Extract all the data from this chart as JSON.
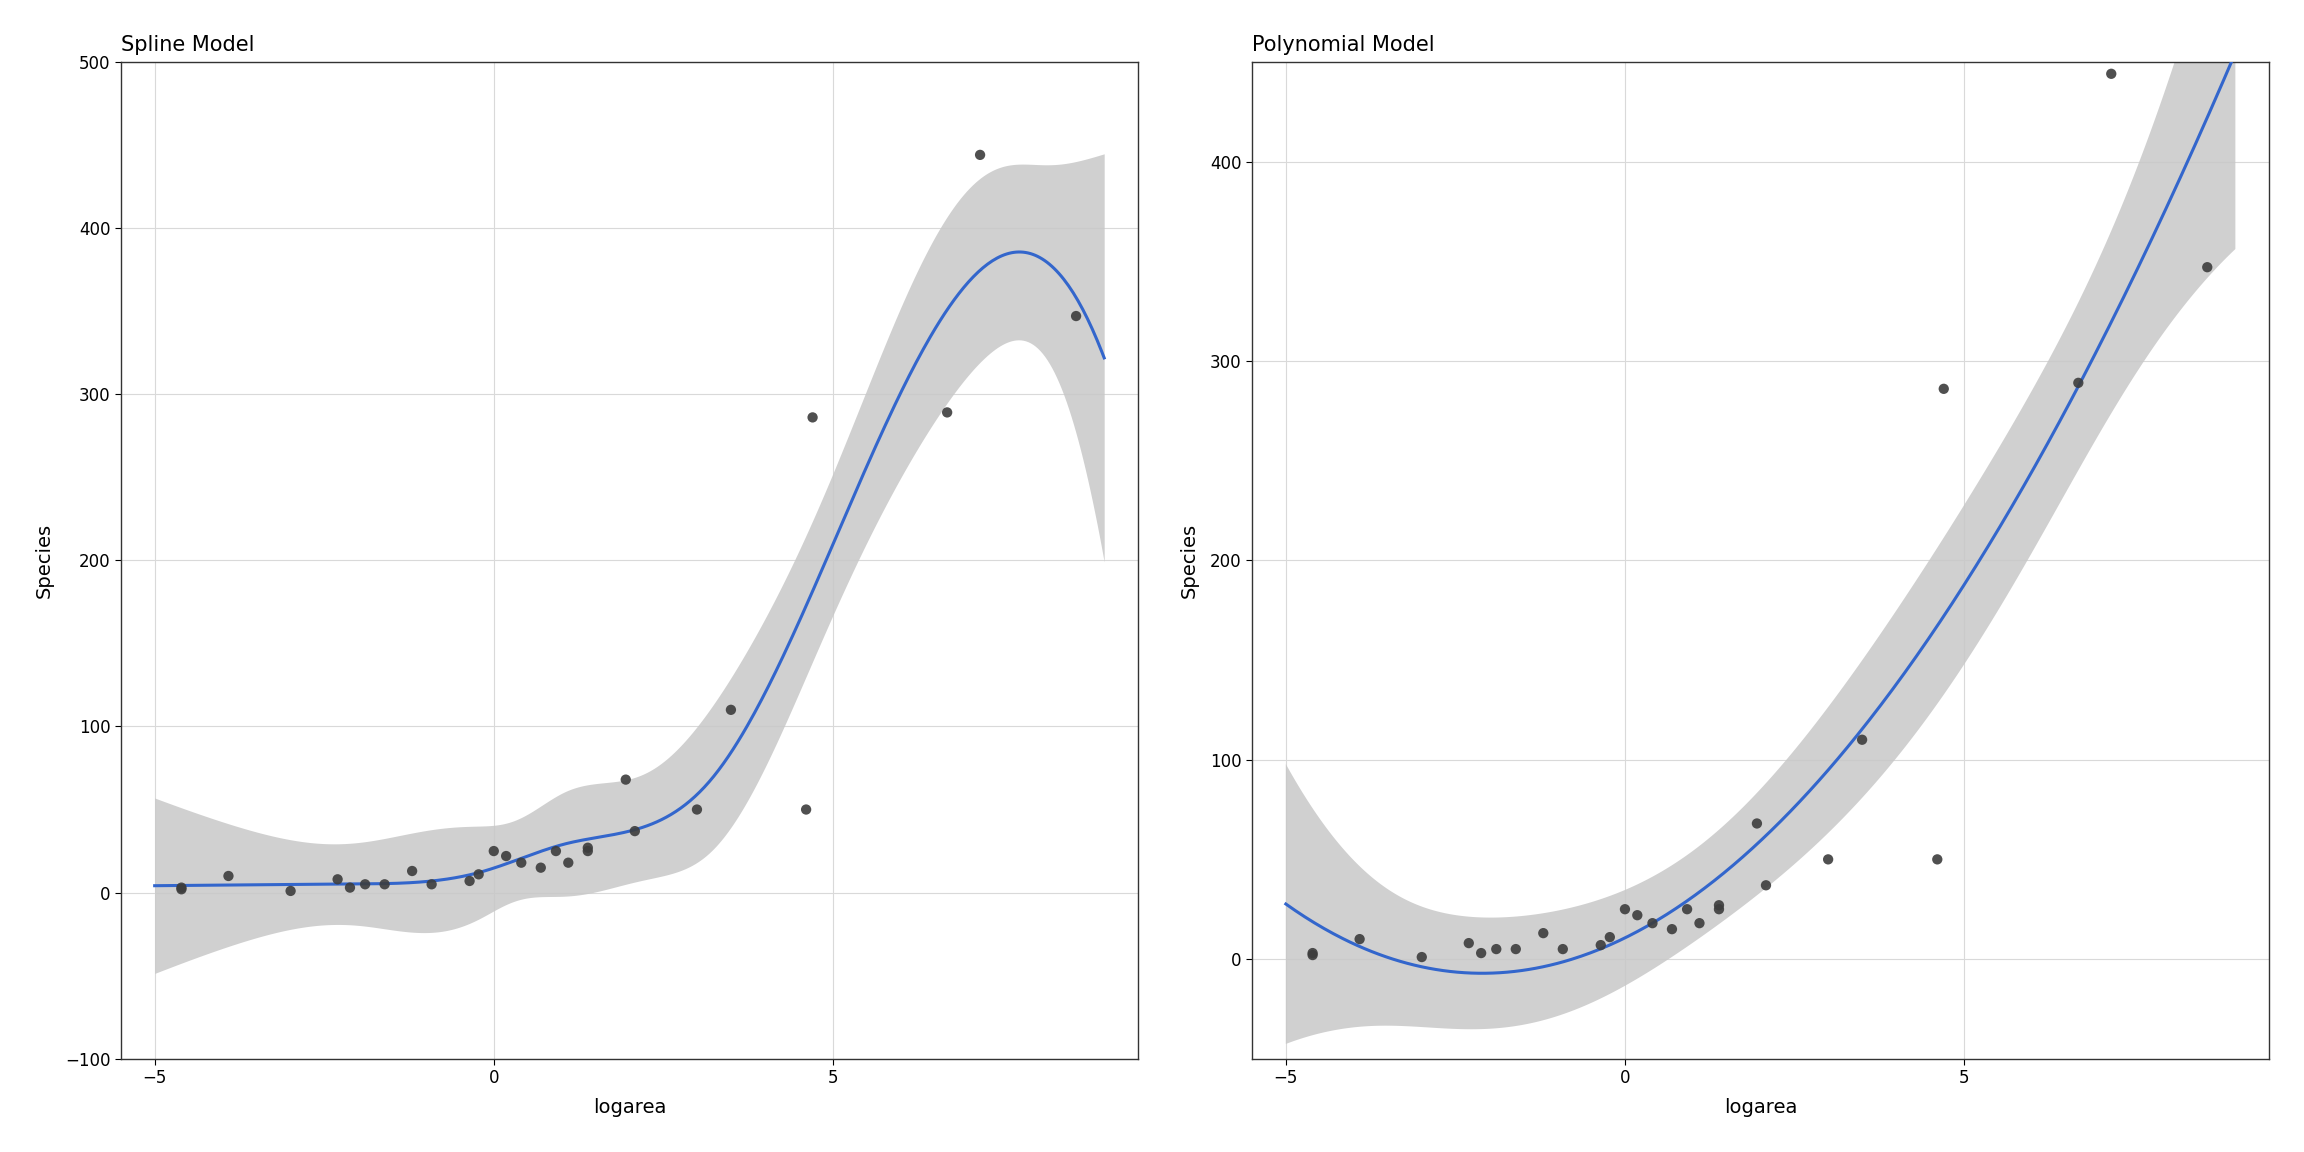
{
  "logarea": [
    -4.6052,
    -4.6052,
    -3.912,
    -2.9957,
    -2.3026,
    -2.1203,
    -1.8971,
    -1.6094,
    -1.204,
    -0.9163,
    -0.3567,
    -0.2231,
    0.0,
    0.1823,
    0.4055,
    0.6931,
    0.9163,
    1.0986,
    1.3863,
    1.3863,
    1.9459,
    2.0794,
    2.9957,
    3.4965,
    4.6052,
    4.7005,
    6.6846,
    7.1701,
    8.5856
  ],
  "species": [
    2,
    3,
    10,
    1,
    8,
    3,
    5,
    5,
    13,
    5,
    7,
    11,
    25,
    22,
    18,
    15,
    25,
    18,
    25,
    27,
    68,
    37,
    50,
    110,
    50,
    286,
    289,
    444,
    347
  ],
  "title_left": "Spline Model",
  "title_right": "Polynomial Model",
  "xlabel": "logarea",
  "ylabel": "Species",
  "bg_color": "#ffffff",
  "panel_bg": "#ffffff",
  "grid_color": "#d9d9d9",
  "line_color": "#3366CC",
  "ci_color": "#c8c8c8",
  "point_color": "#3d3d3d",
  "point_size": 55,
  "line_width": 2.2,
  "ylim_left": [
    -100,
    500
  ],
  "ylim_right": [
    -50,
    450
  ],
  "xlim": [
    -5.5,
    9.5
  ],
  "yticks_left": [
    -100,
    0,
    100,
    200,
    300,
    400,
    500
  ],
  "yticks_right": [
    0,
    100,
    200,
    300,
    400
  ],
  "xticks": [
    -5,
    0,
    5
  ]
}
